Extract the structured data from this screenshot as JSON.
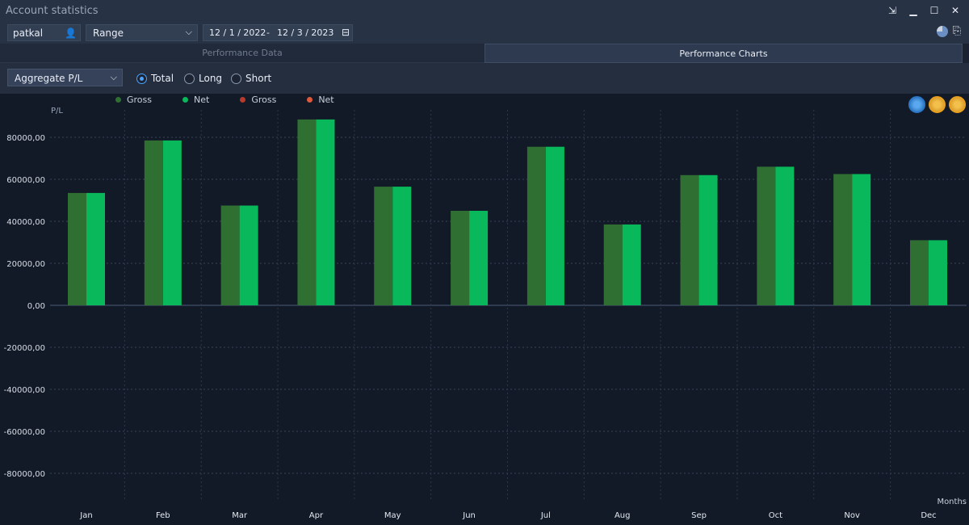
{
  "window": {
    "title": "Account statistics"
  },
  "toolbar": {
    "account": "patkal",
    "range_label": "Range",
    "date_from": "12 / 1 / 2022",
    "date_sep": "-",
    "date_to": "12 / 3 / 2023"
  },
  "tabs": [
    {
      "label": "Performance Data",
      "active": false
    },
    {
      "label": "Performance Charts",
      "active": true
    }
  ],
  "controls": {
    "metric": "Aggregate P/L",
    "radios": [
      {
        "label": "Total",
        "selected": true
      },
      {
        "label": "Long",
        "selected": false
      },
      {
        "label": "Short",
        "selected": false
      }
    ]
  },
  "colors": {
    "gross_pos": "#2f6f32",
    "net_pos": "#08b85a",
    "gross_neg": "#b83a2b",
    "net_neg": "#e0583c"
  },
  "chart_data": {
    "type": "bar",
    "ylabel": "P/L",
    "xlabel": "Months",
    "categories": [
      "Jan",
      "Feb",
      "Mar",
      "Apr",
      "May",
      "Jun",
      "Jul",
      "Aug",
      "Sep",
      "Oct",
      "Nov",
      "Dec"
    ],
    "series": [
      {
        "name": "Gross",
        "values": [
          53500,
          78500,
          47500,
          88500,
          56500,
          45000,
          75500,
          38500,
          62000,
          66000,
          62500,
          31000
        ]
      },
      {
        "name": "Net",
        "values": [
          53500,
          78500,
          47500,
          88500,
          56500,
          45000,
          75500,
          38500,
          62000,
          66000,
          62500,
          31000
        ]
      }
    ],
    "legend": [
      {
        "name": "Gross",
        "color": "#2f6f32"
      },
      {
        "name": "Net",
        "color": "#08b85a"
      },
      {
        "name": "Gross",
        "color": "#b83a2b"
      },
      {
        "name": "Net",
        "color": "#e0583c"
      }
    ],
    "ylim": [
      -100000,
      100000
    ],
    "yticks": [
      80000,
      60000,
      40000,
      20000,
      0,
      -20000,
      -40000,
      -60000,
      -80000
    ],
    "ytick_labels": [
      "80000,00",
      "60000,00",
      "40000,00",
      "20000,00",
      "0,00",
      "-20000,00",
      "-40000,00",
      "-60000,00",
      "-80000,00"
    ],
    "grid": true,
    "legend_position": "top-left"
  }
}
